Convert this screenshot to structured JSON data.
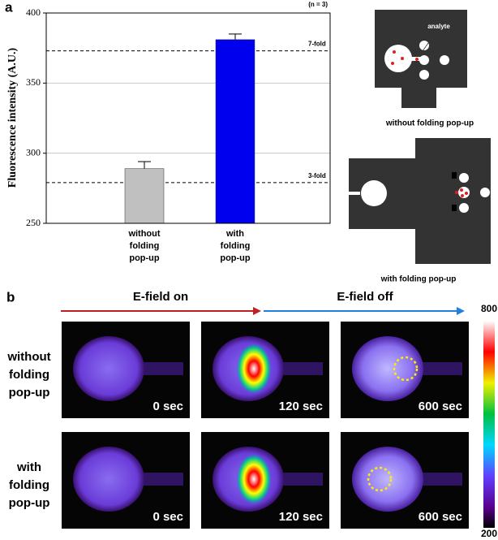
{
  "panel_labels": [
    "a",
    "b"
  ],
  "chart_data": {
    "type": "bar",
    "note": "(n = 3)",
    "ylabel": "Fluorescence intensity (A.U.)",
    "categories": [
      "without folding pop-up",
      "with folding pop-up"
    ],
    "values": [
      289,
      381
    ],
    "errors": [
      5,
      4
    ],
    "colors": [
      "#c0c0c0",
      "#0000ee"
    ],
    "ylim": [
      250,
      400
    ],
    "yticks": [
      250,
      300,
      350,
      400
    ],
    "grid": true,
    "reference_lines": [
      {
        "value": 373,
        "label": "7-fold"
      },
      {
        "value": 279,
        "label": "3-fold"
      }
    ]
  },
  "diagrams": {
    "analyte_label": "analyte",
    "captions": [
      "without folding pop-up",
      "with folding pop-up"
    ]
  },
  "imaging": {
    "arrows": [
      "E-field on",
      "E-field off"
    ],
    "rows": [
      "without folding pop-up",
      "with folding pop-up"
    ],
    "times": [
      "0 sec",
      "120 sec",
      "600 sec"
    ],
    "colorbar": {
      "max": 800,
      "min": 200
    }
  }
}
